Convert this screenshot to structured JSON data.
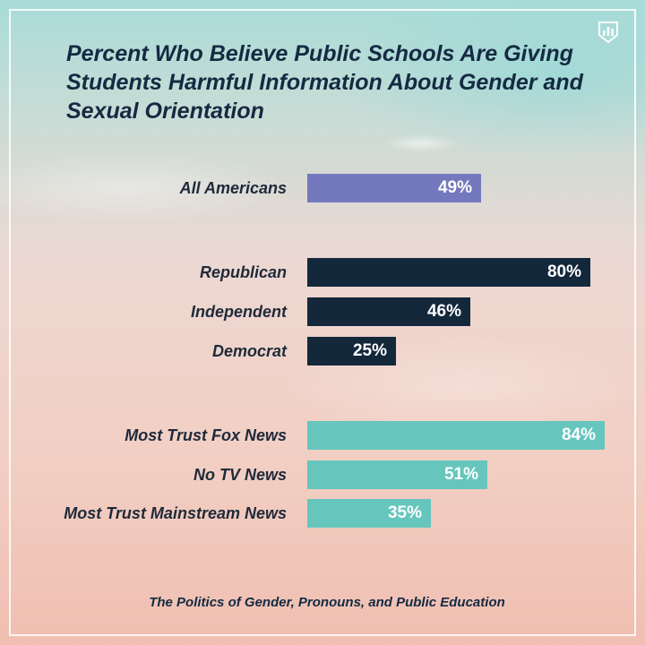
{
  "chart_data": {
    "type": "bar",
    "orientation": "horizontal",
    "title": "Percent Who Believe Public Schools Are Giving Students Harmful Information About Gender and Sexual Orientation",
    "categories": [
      "All Americans",
      "Republican",
      "Independent",
      "Democrat",
      "Most Trust Fox News",
      "No TV News",
      "Most Trust Mainstream News"
    ],
    "values": [
      49,
      80,
      46,
      25,
      84,
      51,
      35
    ],
    "value_labels": [
      "49%",
      "80%",
      "46%",
      "25%",
      "84%",
      "51%",
      "35%"
    ],
    "groups": [
      "overall",
      "party",
      "party",
      "party",
      "news",
      "news",
      "news"
    ],
    "group_colors": {
      "overall": "#7479bd",
      "party": "#14283c",
      "news": "#66c6bd"
    },
    "xlim": [
      0,
      100
    ],
    "xlabel": "",
    "ylabel": "",
    "grid": false,
    "legend": "none"
  },
  "footer": "The Politics of Gender, Pronouns, and Public Education",
  "logo_icon": "bar-chart-shield-icon"
}
